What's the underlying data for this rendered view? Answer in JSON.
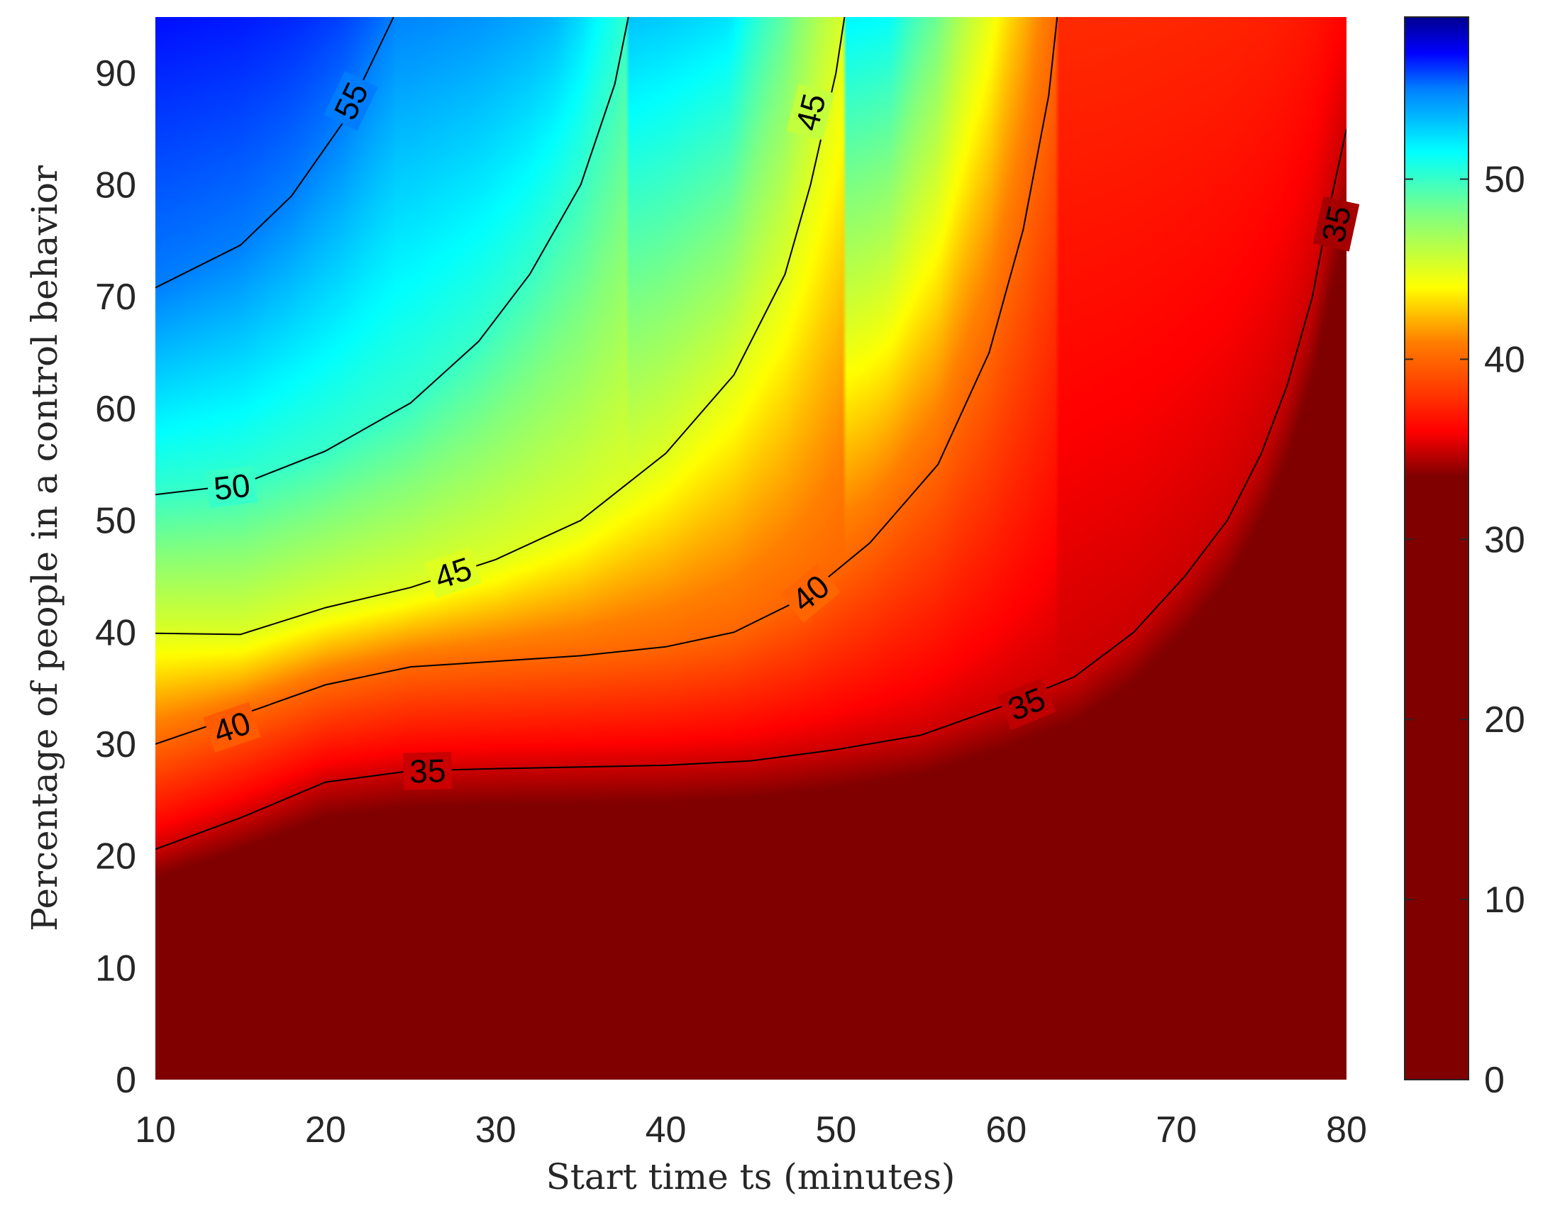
{
  "chart_data": {
    "type": "heatmap",
    "subtype": "filled contour with labeled isolines and colorbar",
    "title": "",
    "xlabel": "Start time ts (minutes)",
    "ylabel": "Percentage of people in a control behavior",
    "xlim": [
      10,
      80
    ],
    "ylim": [
      0,
      95
    ],
    "x_ticks": [
      "10",
      "20",
      "30",
      "40",
      "50",
      "60",
      "70",
      "80"
    ],
    "y_ticks": [
      "0",
      "10",
      "20",
      "30",
      "40",
      "50",
      "60",
      "70",
      "80",
      "90"
    ],
    "colormap": "reversed jet (dark red = low, dark blue = high)",
    "grid": false,
    "colorbar": {
      "position": "right",
      "range": [
        0,
        59
      ],
      "ticks": [
        "0",
        "10",
        "20",
        "30",
        "40",
        "50"
      ],
      "gradient_stops": [
        {
          "value": 0,
          "color": "#800000"
        },
        {
          "value": 33.5,
          "color": "#800000"
        },
        {
          "value": 36,
          "color": "#ff0000"
        },
        {
          "value": 41,
          "color": "#ff8000"
        },
        {
          "value": 44,
          "color": "#ffff00"
        },
        {
          "value": 48,
          "color": "#80ff80"
        },
        {
          "value": 51.5,
          "color": "#00ffff"
        },
        {
          "value": 55,
          "color": "#0080ff"
        },
        {
          "value": 57,
          "color": "#0000ff"
        },
        {
          "value": 59,
          "color": "#00008f"
        }
      ]
    },
    "contours": [
      {
        "level": 55,
        "points": [
          [
            10,
            70.8
          ],
          [
            15,
            74.6
          ],
          [
            18,
            79
          ],
          [
            21,
            85.5
          ],
          [
            24,
            95
          ]
        ],
        "labels": [
          {
            "text": "55",
            "x": 21.5,
            "y": 87.5
          }
        ]
      },
      {
        "level": 50,
        "points": [
          [
            10,
            52.3
          ],
          [
            15,
            53.2
          ],
          [
            20,
            56.2
          ],
          [
            25,
            60.5
          ],
          [
            29,
            66
          ],
          [
            32,
            72
          ],
          [
            35,
            80
          ],
          [
            37,
            89
          ],
          [
            37.8,
            95
          ]
        ],
        "labels": [
          {
            "text": "50",
            "x": 14.5,
            "y": 53
          }
        ]
      },
      {
        "level": 45,
        "points": [
          [
            10,
            39.9
          ],
          [
            15,
            39.8
          ],
          [
            20,
            42.2
          ],
          [
            25,
            44
          ],
          [
            30,
            46.5
          ],
          [
            35,
            50
          ],
          [
            40,
            56
          ],
          [
            44,
            63
          ],
          [
            47,
            72
          ],
          [
            48.5,
            80
          ],
          [
            50,
            90
          ],
          [
            50.5,
            95
          ]
        ],
        "labels": [
          {
            "text": "45",
            "x": 27.5,
            "y": 45.3
          },
          {
            "text": "45",
            "x": 48.5,
            "y": 86.5
          }
        ]
      },
      {
        "level": 40,
        "points": [
          [
            10,
            30
          ],
          [
            15,
            32.6
          ],
          [
            20,
            35.3
          ],
          [
            25,
            36.9
          ],
          [
            30,
            37.4
          ],
          [
            35,
            37.9
          ],
          [
            40,
            38.7
          ],
          [
            44,
            40
          ],
          [
            48,
            43
          ],
          [
            52,
            48
          ],
          [
            56,
            55
          ],
          [
            59,
            65
          ],
          [
            61,
            76
          ],
          [
            62.5,
            88
          ],
          [
            63,
            95
          ]
        ],
        "labels": [
          {
            "text": "40",
            "x": 14.5,
            "y": 31.5
          },
          {
            "text": "40",
            "x": 48.5,
            "y": 43.5
          }
        ]
      },
      {
        "level": 35,
        "points": [
          [
            10,
            20.6
          ],
          [
            15,
            23.4
          ],
          [
            20,
            26.6
          ],
          [
            25,
            27.6
          ],
          [
            30,
            27.8
          ],
          [
            40,
            28.1
          ],
          [
            45,
            28.5
          ],
          [
            50,
            29.5
          ],
          [
            55,
            30.8
          ],
          [
            60,
            33.5
          ],
          [
            64,
            36
          ],
          [
            67.5,
            40
          ],
          [
            70.5,
            45
          ],
          [
            73,
            50
          ],
          [
            75,
            56
          ],
          [
            76.5,
            62
          ],
          [
            78,
            70
          ],
          [
            79,
            78
          ],
          [
            80,
            85
          ]
        ],
        "labels": [
          {
            "text": "35",
            "x": 26,
            "y": 27.6
          },
          {
            "text": "35",
            "x": 61.2,
            "y": 33.6
          },
          {
            "text": "35",
            "x": 79.4,
            "y": 76.5
          }
        ]
      }
    ]
  }
}
